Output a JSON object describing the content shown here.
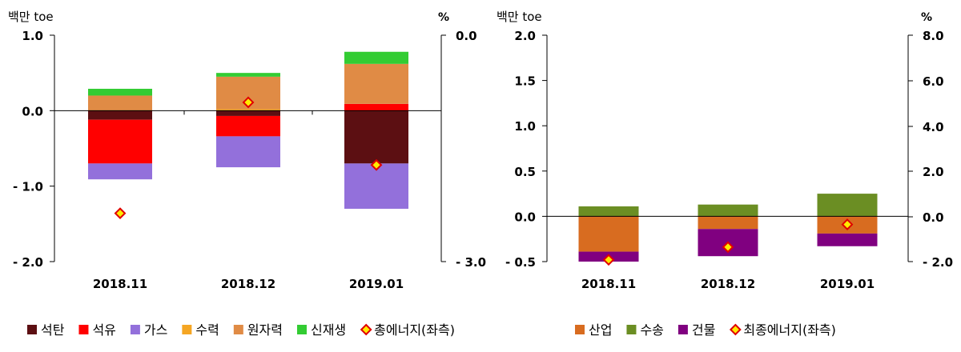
{
  "chart_data": [
    {
      "type": "bar",
      "stacked": true,
      "categories": [
        "2018.11",
        "2018.12",
        "2019.01"
      ],
      "y_left_label": "백만 toe",
      "y_right_label": "%",
      "ylim_left": [
        -2.0,
        1.0
      ],
      "ylim_right": [
        -3.0,
        0.0
      ],
      "yticks_left": [
        "1.0",
        "0.0",
        "- 1.0",
        "- 2.0"
      ],
      "yticks_right": [
        "0.0",
        "- 3.0"
      ],
      "grid": false,
      "legend_position": "bottom",
      "series": [
        {
          "name": "석탄",
          "color": "#5c0f12",
          "values": [
            -0.12,
            -0.07,
            -0.7
          ]
        },
        {
          "name": "석유",
          "color": "#ff0000",
          "values": [
            -0.58,
            -0.27,
            0.09
          ]
        },
        {
          "name": "가스",
          "color": "#9370db",
          "values": [
            -0.21,
            -0.41,
            -0.6
          ]
        },
        {
          "name": "수력",
          "color": "#f5a623",
          "values": [
            0.0,
            0.02,
            0.0
          ]
        },
        {
          "name": "원자력",
          "color": "#e08b45",
          "values": [
            0.2,
            0.43,
            0.53
          ]
        },
        {
          "name": "신재생",
          "color": "#33cc33",
          "values": [
            0.09,
            0.05,
            0.16
          ]
        }
      ],
      "marker_series": {
        "name": "총에너지(좌측)",
        "values": [
          -1.36,
          0.11,
          -0.72
        ]
      }
    },
    {
      "type": "bar",
      "stacked": true,
      "categories": [
        "2018.11",
        "2018.12",
        "2019.01"
      ],
      "y_left_label": "백만 toe",
      "y_right_label": "%",
      "ylim_left": [
        -0.5,
        2.0
      ],
      "ylim_right": [
        -2.0,
        8.0
      ],
      "yticks_left": [
        "2.0",
        "1.5",
        "1.0",
        "0.5",
        "0.0",
        "- 0.5"
      ],
      "yticks_right": [
        "8.0",
        "6.0",
        "4.0",
        "2.0",
        "0.0",
        "- 2.0"
      ],
      "grid": false,
      "legend_position": "bottom",
      "series": [
        {
          "name": "산업",
          "color": "#d86c20",
          "values": [
            -0.39,
            -0.14,
            -0.19
          ]
        },
        {
          "name": "수송",
          "color": "#6b8e23",
          "values": [
            0.11,
            0.13,
            0.25
          ]
        },
        {
          "name": "건물",
          "color": "#800080",
          "values": [
            -0.11,
            -0.3,
            -0.14
          ]
        }
      ],
      "marker_series": {
        "name": "최종에너지(좌측)",
        "values": [
          -0.48,
          -0.34,
          -0.09
        ]
      }
    }
  ]
}
